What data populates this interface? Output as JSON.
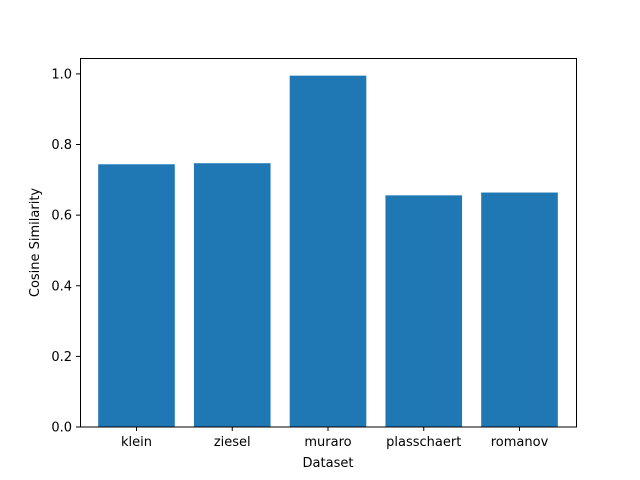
{
  "chart_data": {
    "type": "bar",
    "title": "",
    "xlabel": "Dataset",
    "ylabel": "Cosine Similarity",
    "categories": [
      "klein",
      "ziesel",
      "muraro",
      "plasschaert",
      "romanov"
    ],
    "values": [
      0.744,
      0.747,
      0.995,
      0.656,
      0.664
    ],
    "ylim": [
      0,
      1.045
    ],
    "yticks": [
      0.0,
      0.2,
      0.4,
      0.6,
      0.8,
      1.0
    ],
    "ytick_labels": [
      "0.0",
      "0.2",
      "0.4",
      "0.6",
      "0.8",
      "1.0"
    ],
    "bar_color": "#1f77b4",
    "grid": false,
    "legend": false
  }
}
